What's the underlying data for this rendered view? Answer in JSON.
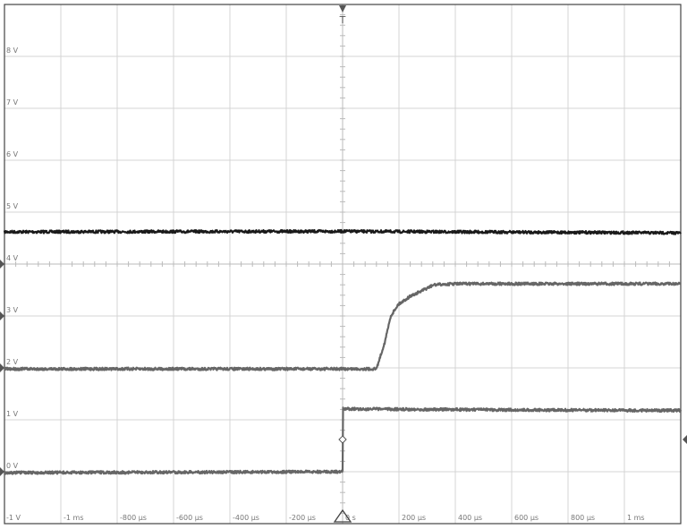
{
  "chart_data": {
    "type": "line",
    "title": "",
    "xlabel": "",
    "ylabel": "",
    "xlim_us": [
      -1200,
      1200
    ],
    "ylim": [
      -1,
      9
    ],
    "grid": true,
    "x_tick_labels": [
      {
        "value": -1000,
        "label": "-1 ms"
      },
      {
        "value": -800,
        "label": "-800 µs"
      },
      {
        "value": -600,
        "label": "-600 µs"
      },
      {
        "value": -400,
        "label": "-400 µs"
      },
      {
        "value": -200,
        "label": "-200 µs"
      },
      {
        "value": 0,
        "label": "0 s"
      },
      {
        "value": 200,
        "label": "200 µs"
      },
      {
        "value": 400,
        "label": "400 µs"
      },
      {
        "value": 600,
        "label": "600 µs"
      },
      {
        "value": 800,
        "label": "800 µs"
      },
      {
        "value": 1000,
        "label": "1 ms"
      }
    ],
    "y_tick_labels": [
      {
        "value": 8,
        "label": "8 V"
      },
      {
        "value": 7,
        "label": "7 V"
      },
      {
        "value": 6,
        "label": "6 V"
      },
      {
        "value": 5,
        "label": "5 V"
      },
      {
        "value": 4,
        "label": "4 V"
      },
      {
        "value": 3,
        "label": "3 V"
      },
      {
        "value": 2,
        "label": "2 V"
      },
      {
        "value": 1,
        "label": "1 V"
      },
      {
        "value": 0,
        "label": "0 V"
      },
      {
        "value": -1,
        "label": "-1 V"
      }
    ],
    "series": [
      {
        "color": "#1a1a1a",
        "points": [
          [
            -1200,
            4.62
          ],
          [
            0,
            4.63
          ],
          [
            1200,
            4.6
          ]
        ]
      },
      {
        "color": "#666666",
        "points": [
          [
            -1200,
            1.98
          ],
          [
            120,
            1.98
          ],
          [
            150,
            2.5
          ],
          [
            171,
            3.0
          ],
          [
            197,
            3.22
          ],
          [
            240,
            3.38
          ],
          [
            276,
            3.47
          ],
          [
            324,
            3.6
          ],
          [
            400,
            3.62
          ],
          [
            1200,
            3.62
          ]
        ]
      },
      {
        "color": "#666666",
        "points": [
          [
            -1200,
            -0.02
          ],
          [
            0,
            0.0
          ],
          [
            0.5,
            1.21
          ],
          [
            600,
            1.19
          ],
          [
            1200,
            1.18
          ]
        ]
      }
    ],
    "trigger_marker": "T",
    "trigger_time_us": 0,
    "trigger_level_v": 0.62
  }
}
